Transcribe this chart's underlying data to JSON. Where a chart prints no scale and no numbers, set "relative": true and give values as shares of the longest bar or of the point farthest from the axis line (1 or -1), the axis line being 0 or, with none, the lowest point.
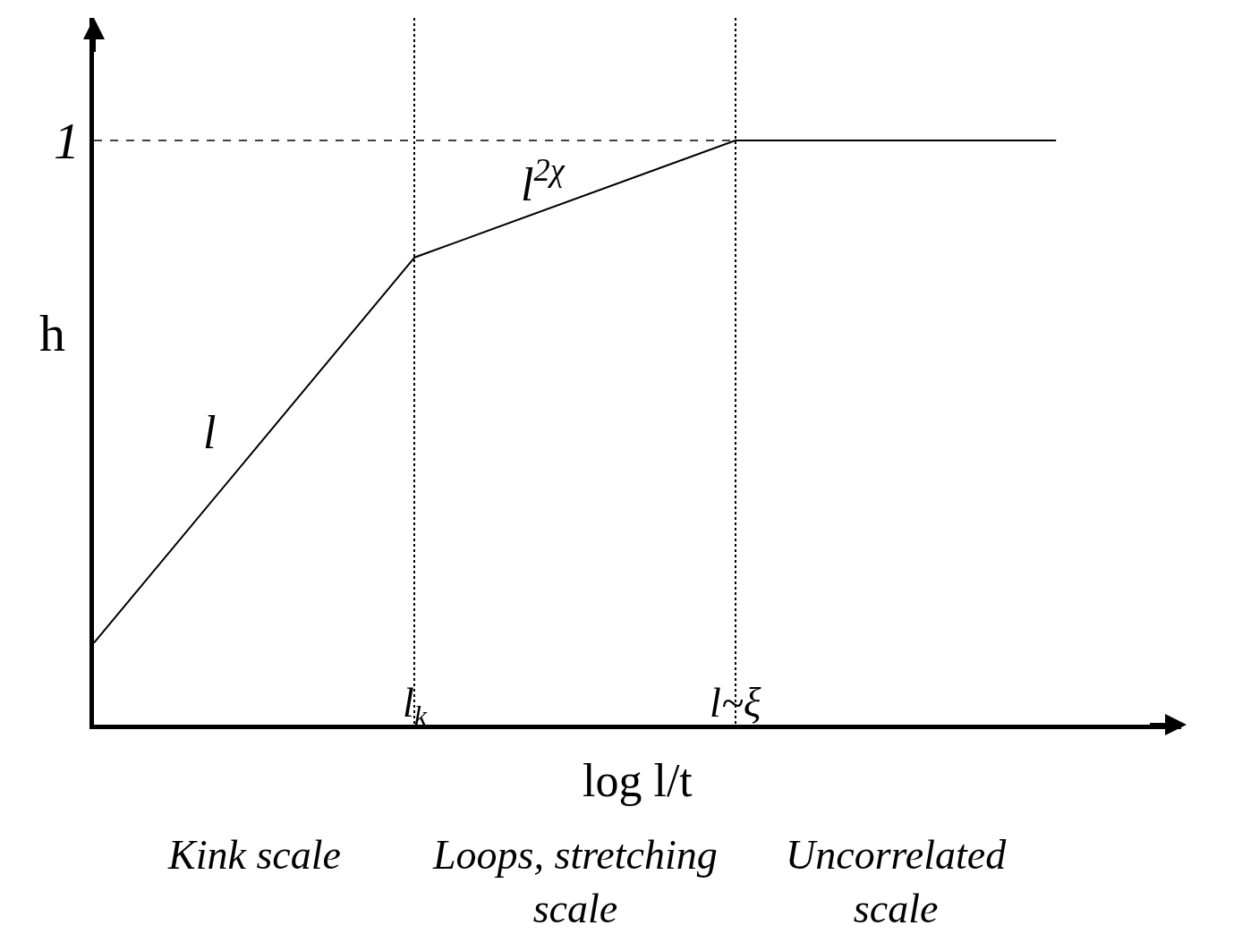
{
  "chart_data": {
    "type": "line",
    "relative": true,
    "xlabel": "log l/t",
    "ylabel": "h",
    "categories": [
      null,
      "l$_{k}$",
      "l~ξ",
      null
    ],
    "series": [
      {
        "color": "#000000",
        "values": [
          0.14,
          0.8,
          1,
          1
        ]
      }
    ],
    "tick_labels": "x",
    "grid": "x",
    "marker": "none",
    "line_style": "solid",
    "ref_lines": [
      {
        "axis": "y",
        "value": 1,
        "label": "1",
        "line_style": "dashed"
      }
    ],
    "annotations": [
      "Kink scale",
      "Loops, stretching scale",
      "Uncorrelated scale",
      "l",
      "l$^{2χ}$"
    ]
  }
}
